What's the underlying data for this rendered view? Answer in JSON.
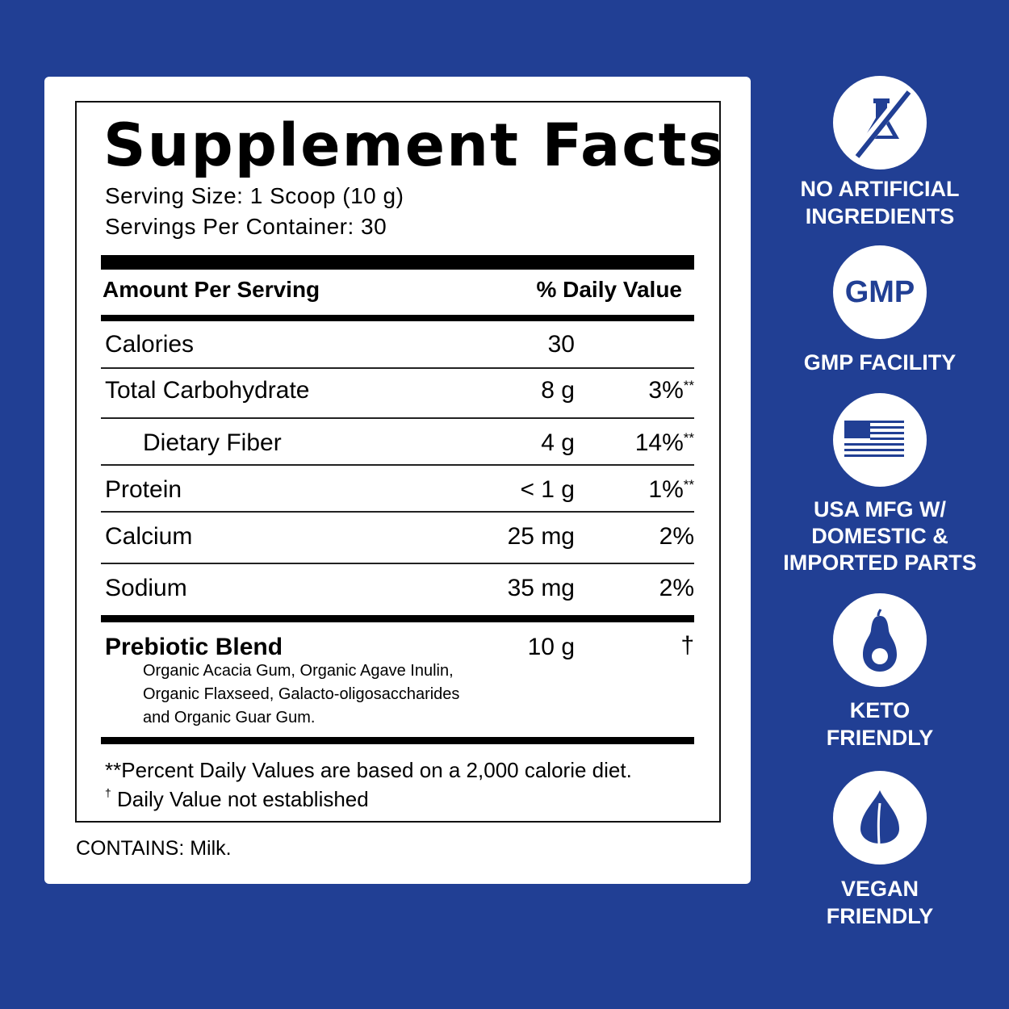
{
  "colors": {
    "background": "#213f94",
    "panel": "#ffffff",
    "text": "#000000"
  },
  "label": {
    "title": "Supplement Facts",
    "serving_size": "Serving Size: 1 Scoop (10 g)",
    "servings_per_container": "Servings Per Container: 30",
    "header_amount": "Amount Per Serving",
    "header_dv": "% Daily Value",
    "rows": [
      {
        "name": "Calories",
        "amount": "30",
        "dv": "",
        "mark": ""
      },
      {
        "name": "Total Carbohydrate",
        "amount": "8 g",
        "dv": "3%",
        "mark": "**"
      },
      {
        "name": "Dietary Fiber",
        "amount": "4 g",
        "dv": "14%",
        "mark": "**"
      },
      {
        "name": "Protein",
        "amount": "< 1 g",
        "dv": "1%",
        "mark": "**"
      },
      {
        "name": "Calcium",
        "amount": "25 mg",
        "dv": "2%",
        "mark": ""
      },
      {
        "name": "Sodium",
        "amount": "35 mg",
        "dv": "2%",
        "mark": ""
      }
    ],
    "blend": {
      "name": "Prebiotic Blend",
      "amount": "10 g",
      "dv": "†",
      "ingredients": [
        "Organic Acacia Gum, Organic Agave Inulin,",
        "Organic Flaxseed, Galacto-oligosaccharides",
        "and Organic Guar Gum."
      ]
    },
    "footnote_1": "**Percent Daily Values are based on a 2,000 calorie diet.",
    "footnote_2_mark": "†",
    "footnote_2": " Daily Value not established",
    "contains": "CONTAINS: Milk."
  },
  "badges": [
    {
      "icon": "no-flask-icon",
      "lines": [
        "NO ARTIFICIAL",
        "INGREDIENTS"
      ]
    },
    {
      "icon": "gmp-icon",
      "icon_text": "GMP",
      "lines": [
        "GMP FACILITY"
      ]
    },
    {
      "icon": "usa-flag-icon",
      "lines": [
        "USA MFG W/",
        "DOMESTIC &",
        "IMPORTED PARTS"
      ]
    },
    {
      "icon": "avocado-icon",
      "lines": [
        "KETO",
        "FRIENDLY"
      ]
    },
    {
      "icon": "leaf-icon",
      "lines": [
        "VEGAN",
        "FRIENDLY"
      ]
    }
  ]
}
